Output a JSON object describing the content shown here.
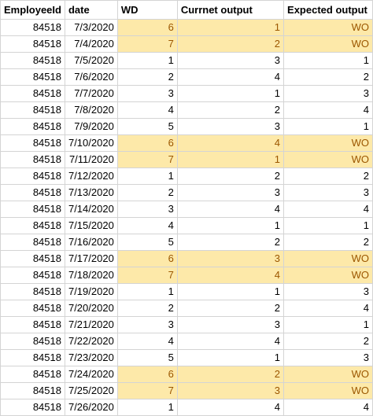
{
  "headers": [
    "EmployeeId",
    "date",
    "WD",
    "Currnet output",
    "Expected output"
  ],
  "rows": [
    {
      "emp": "84518",
      "date": "7/3/2020",
      "wd": "6",
      "cur": "1",
      "exp": "WO",
      "hl": true
    },
    {
      "emp": "84518",
      "date": "7/4/2020",
      "wd": "7",
      "cur": "2",
      "exp": "WO",
      "hl": true
    },
    {
      "emp": "84518",
      "date": "7/5/2020",
      "wd": "1",
      "cur": "3",
      "exp": "1",
      "hl": false
    },
    {
      "emp": "84518",
      "date": "7/6/2020",
      "wd": "2",
      "cur": "4",
      "exp": "2",
      "hl": false
    },
    {
      "emp": "84518",
      "date": "7/7/2020",
      "wd": "3",
      "cur": "1",
      "exp": "3",
      "hl": false
    },
    {
      "emp": "84518",
      "date": "7/8/2020",
      "wd": "4",
      "cur": "2",
      "exp": "4",
      "hl": false
    },
    {
      "emp": "84518",
      "date": "7/9/2020",
      "wd": "5",
      "cur": "3",
      "exp": "1",
      "hl": false
    },
    {
      "emp": "84518",
      "date": "7/10/2020",
      "wd": "6",
      "cur": "4",
      "exp": "WO",
      "hl": true
    },
    {
      "emp": "84518",
      "date": "7/11/2020",
      "wd": "7",
      "cur": "1",
      "exp": "WO",
      "hl": true
    },
    {
      "emp": "84518",
      "date": "7/12/2020",
      "wd": "1",
      "cur": "2",
      "exp": "2",
      "hl": false
    },
    {
      "emp": "84518",
      "date": "7/13/2020",
      "wd": "2",
      "cur": "3",
      "exp": "3",
      "hl": false
    },
    {
      "emp": "84518",
      "date": "7/14/2020",
      "wd": "3",
      "cur": "4",
      "exp": "4",
      "hl": false
    },
    {
      "emp": "84518",
      "date": "7/15/2020",
      "wd": "4",
      "cur": "1",
      "exp": "1",
      "hl": false
    },
    {
      "emp": "84518",
      "date": "7/16/2020",
      "wd": "5",
      "cur": "2",
      "exp": "2",
      "hl": false
    },
    {
      "emp": "84518",
      "date": "7/17/2020",
      "wd": "6",
      "cur": "3",
      "exp": "WO",
      "hl": true
    },
    {
      "emp": "84518",
      "date": "7/18/2020",
      "wd": "7",
      "cur": "4",
      "exp": "WO",
      "hl": true
    },
    {
      "emp": "84518",
      "date": "7/19/2020",
      "wd": "1",
      "cur": "1",
      "exp": "3",
      "hl": false
    },
    {
      "emp": "84518",
      "date": "7/20/2020",
      "wd": "2",
      "cur": "2",
      "exp": "4",
      "hl": false
    },
    {
      "emp": "84518",
      "date": "7/21/2020",
      "wd": "3",
      "cur": "3",
      "exp": "1",
      "hl": false
    },
    {
      "emp": "84518",
      "date": "7/22/2020",
      "wd": "4",
      "cur": "4",
      "exp": "2",
      "hl": false
    },
    {
      "emp": "84518",
      "date": "7/23/2020",
      "wd": "5",
      "cur": "1",
      "exp": "3",
      "hl": false
    },
    {
      "emp": "84518",
      "date": "7/24/2020",
      "wd": "6",
      "cur": "2",
      "exp": "WO",
      "hl": true
    },
    {
      "emp": "84518",
      "date": "7/25/2020",
      "wd": "7",
      "cur": "3",
      "exp": "WO",
      "hl": true
    },
    {
      "emp": "84518",
      "date": "7/26/2020",
      "wd": "1",
      "cur": "4",
      "exp": "4",
      "hl": false
    }
  ],
  "colors": {
    "highlight_fill": "#fde9a9",
    "highlight_text": "#9c5700",
    "gridline": "#d4d4d4"
  }
}
